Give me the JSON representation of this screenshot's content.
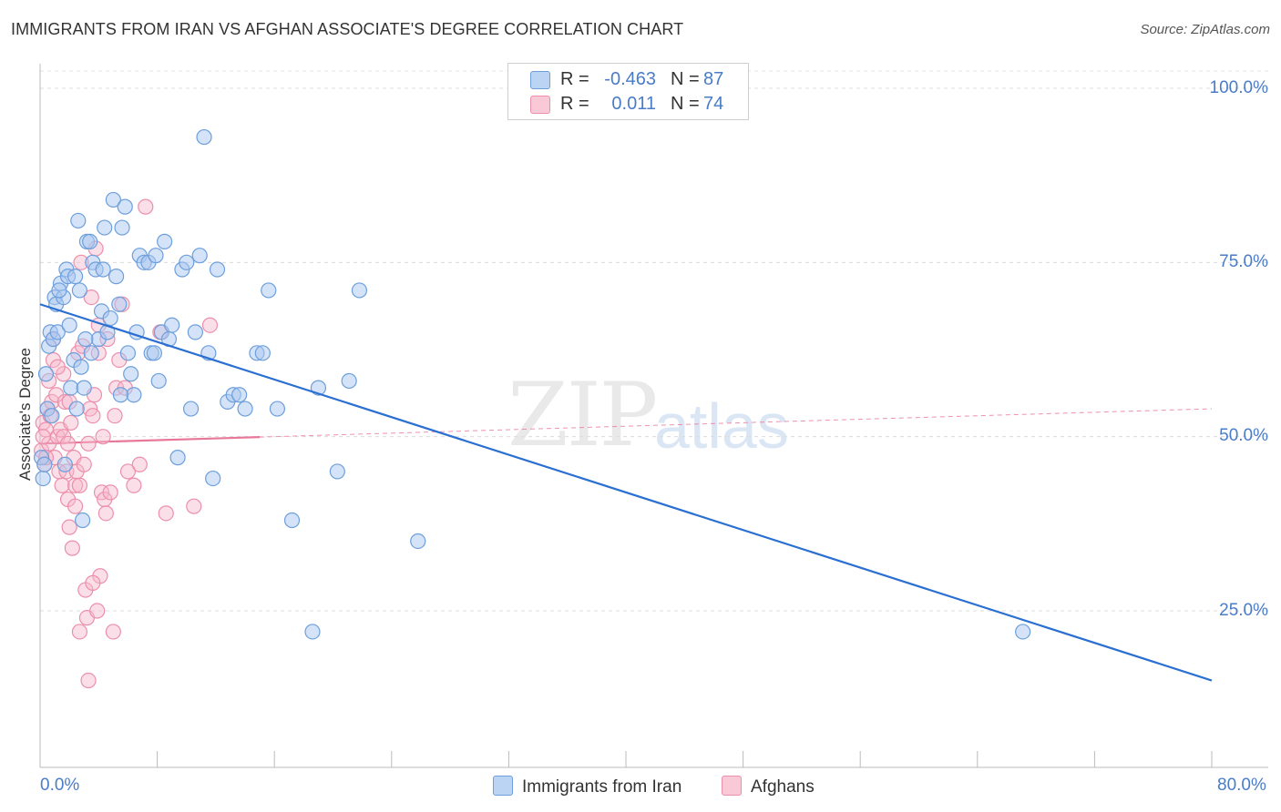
{
  "title": "IMMIGRANTS FROM IRAN VS AFGHAN ASSOCIATE'S DEGREE CORRELATION CHART",
  "source": "Source: ZipAtlas.com",
  "watermark": {
    "zip": "ZIP",
    "atlas": "atlas"
  },
  "legend": {
    "rows": [
      {
        "r_label": "R =",
        "r_value": "-0.463",
        "n_label": "N =",
        "n_value": "87"
      },
      {
        "r_label": "R =",
        "r_value": "0.011",
        "n_label": "N =",
        "n_value": "74"
      }
    ]
  },
  "bottom_legend": [
    "Immigrants from Iran",
    "Afghans"
  ],
  "colors": {
    "iran_fill": "#a9c8ef",
    "iran_stroke": "#6d9fdc",
    "iran_line": "#2a6fd1",
    "afghan_fill": "#f6b9cb",
    "afghan_stroke": "#ec8fab",
    "afghan_line": "#e8779a",
    "value_blue": "#4a7cc7"
  },
  "chart_data": {
    "type": "scatter",
    "title": "IMMIGRANTS FROM IRAN VS AFGHAN ASSOCIATE'S DEGREE CORRELATION CHART",
    "xlabel": "",
    "ylabel": "Associate's Degree",
    "xlim": [
      0,
      80
    ],
    "ylim": [
      0,
      105
    ],
    "x_tick_labels": [
      "0.0%",
      "80.0%"
    ],
    "y_ticks": [
      25,
      50,
      75,
      100
    ],
    "y_tick_labels": [
      "25.0%",
      "50.0%",
      "75.0%",
      "100.0%"
    ],
    "grid": true,
    "series": [
      {
        "name": "Immigrants from Iran",
        "R": -0.463,
        "N": 87,
        "trend": {
          "x": [
            0,
            80
          ],
          "y": [
            69,
            15
          ],
          "style": "solid"
        },
        "points": [
          [
            0.1,
            47
          ],
          [
            0.2,
            44
          ],
          [
            0.4,
            59
          ],
          [
            0.5,
            54
          ],
          [
            0.6,
            63
          ],
          [
            0.7,
            65
          ],
          [
            0.9,
            64
          ],
          [
            1.0,
            70
          ],
          [
            1.1,
            69
          ],
          [
            1.2,
            65
          ],
          [
            1.4,
            72
          ],
          [
            1.6,
            70
          ],
          [
            1.8,
            74
          ],
          [
            1.9,
            73
          ],
          [
            2.0,
            66
          ],
          [
            2.1,
            57
          ],
          [
            2.3,
            61
          ],
          [
            2.5,
            54
          ],
          [
            2.6,
            81
          ],
          [
            2.7,
            71
          ],
          [
            2.8,
            60
          ],
          [
            3.0,
            57
          ],
          [
            3.2,
            78
          ],
          [
            3.4,
            78
          ],
          [
            3.6,
            75
          ],
          [
            3.8,
            74
          ],
          [
            4.0,
            64
          ],
          [
            4.2,
            68
          ],
          [
            4.4,
            80
          ],
          [
            4.6,
            65
          ],
          [
            4.8,
            67
          ],
          [
            5.0,
            84
          ],
          [
            5.2,
            73
          ],
          [
            5.4,
            69
          ],
          [
            5.6,
            80
          ],
          [
            5.8,
            83
          ],
          [
            6.0,
            62
          ],
          [
            6.2,
            59
          ],
          [
            6.4,
            56
          ],
          [
            6.8,
            76
          ],
          [
            7.1,
            75
          ],
          [
            7.4,
            75
          ],
          [
            7.6,
            62
          ],
          [
            7.9,
            76
          ],
          [
            8.1,
            58
          ],
          [
            8.3,
            65
          ],
          [
            8.5,
            78
          ],
          [
            8.8,
            64
          ],
          [
            9.0,
            66
          ],
          [
            9.4,
            47
          ],
          [
            9.7,
            74
          ],
          [
            10.0,
            75
          ],
          [
            10.3,
            54
          ],
          [
            10.6,
            65
          ],
          [
            10.9,
            76
          ],
          [
            11.2,
            93
          ],
          [
            11.5,
            62
          ],
          [
            11.8,
            44
          ],
          [
            12.1,
            74
          ],
          [
            12.8,
            55
          ],
          [
            13.2,
            56
          ],
          [
            13.6,
            56
          ],
          [
            14.0,
            54
          ],
          [
            14.8,
            62
          ],
          [
            15.2,
            62
          ],
          [
            15.6,
            71
          ],
          [
            16.2,
            54
          ],
          [
            17.2,
            38
          ],
          [
            18.6,
            22
          ],
          [
            19.0,
            57
          ],
          [
            20.3,
            45
          ],
          [
            21.1,
            58
          ],
          [
            21.8,
            71
          ],
          [
            25.8,
            35
          ],
          [
            67.1,
            22
          ],
          [
            2.9,
            38
          ],
          [
            1.7,
            46
          ],
          [
            0.8,
            53
          ],
          [
            3.5,
            62
          ],
          [
            4.3,
            74
          ],
          [
            2.4,
            73
          ],
          [
            1.3,
            71
          ],
          [
            0.3,
            46
          ],
          [
            5.5,
            56
          ],
          [
            6.6,
            65
          ],
          [
            3.1,
            64
          ],
          [
            7.8,
            62
          ]
        ]
      },
      {
        "name": "Afghans",
        "R": 0.011,
        "N": 74,
        "trend": {
          "x": [
            0,
            80
          ],
          "y": [
            49,
            54
          ],
          "style": "solid to x=15, dashed beyond"
        },
        "points": [
          [
            0.1,
            48
          ],
          [
            0.2,
            52
          ],
          [
            0.3,
            46
          ],
          [
            0.4,
            51
          ],
          [
            0.5,
            54
          ],
          [
            0.6,
            49
          ],
          [
            0.7,
            53
          ],
          [
            0.8,
            55
          ],
          [
            0.9,
            61
          ],
          [
            1.0,
            47
          ],
          [
            1.1,
            56
          ],
          [
            1.2,
            50
          ],
          [
            1.3,
            45
          ],
          [
            1.4,
            51
          ],
          [
            1.5,
            43
          ],
          [
            1.6,
            59
          ],
          [
            1.7,
            55
          ],
          [
            1.8,
            45
          ],
          [
            1.9,
            41
          ],
          [
            2.0,
            37
          ],
          [
            2.1,
            52
          ],
          [
            2.2,
            34
          ],
          [
            2.3,
            47
          ],
          [
            2.4,
            43
          ],
          [
            2.5,
            45
          ],
          [
            2.6,
            62
          ],
          [
            2.7,
            22
          ],
          [
            2.8,
            75
          ],
          [
            2.9,
            63
          ],
          [
            3.0,
            46
          ],
          [
            3.1,
            28
          ],
          [
            3.2,
            24
          ],
          [
            3.3,
            15
          ],
          [
            3.4,
            54
          ],
          [
            3.5,
            70
          ],
          [
            3.6,
            53
          ],
          [
            3.7,
            56
          ],
          [
            3.8,
            77
          ],
          [
            3.9,
            25
          ],
          [
            4.0,
            62
          ],
          [
            4.1,
            30
          ],
          [
            4.2,
            42
          ],
          [
            4.3,
            50
          ],
          [
            4.4,
            41
          ],
          [
            4.5,
            39
          ],
          [
            4.6,
            64
          ],
          [
            4.8,
            42
          ],
          [
            5.0,
            22
          ],
          [
            5.2,
            57
          ],
          [
            5.4,
            61
          ],
          [
            5.6,
            69
          ],
          [
            5.8,
            57
          ],
          [
            6.0,
            45
          ],
          [
            6.4,
            43
          ],
          [
            6.8,
            46
          ],
          [
            7.2,
            83
          ],
          [
            8.2,
            65
          ],
          [
            8.6,
            39
          ],
          [
            10.5,
            40
          ],
          [
            11.6,
            66
          ],
          [
            1.2,
            60
          ],
          [
            0.9,
            64
          ],
          [
            2.4,
            40
          ],
          [
            3.6,
            29
          ],
          [
            0.4,
            47
          ],
          [
            1.6,
            50
          ],
          [
            2.0,
            55
          ],
          [
            2.7,
            43
          ],
          [
            4.0,
            66
          ],
          [
            0.6,
            58
          ],
          [
            1.9,
            49
          ],
          [
            3.3,
            49
          ],
          [
            0.2,
            50
          ],
          [
            5.1,
            53
          ]
        ]
      }
    ]
  }
}
